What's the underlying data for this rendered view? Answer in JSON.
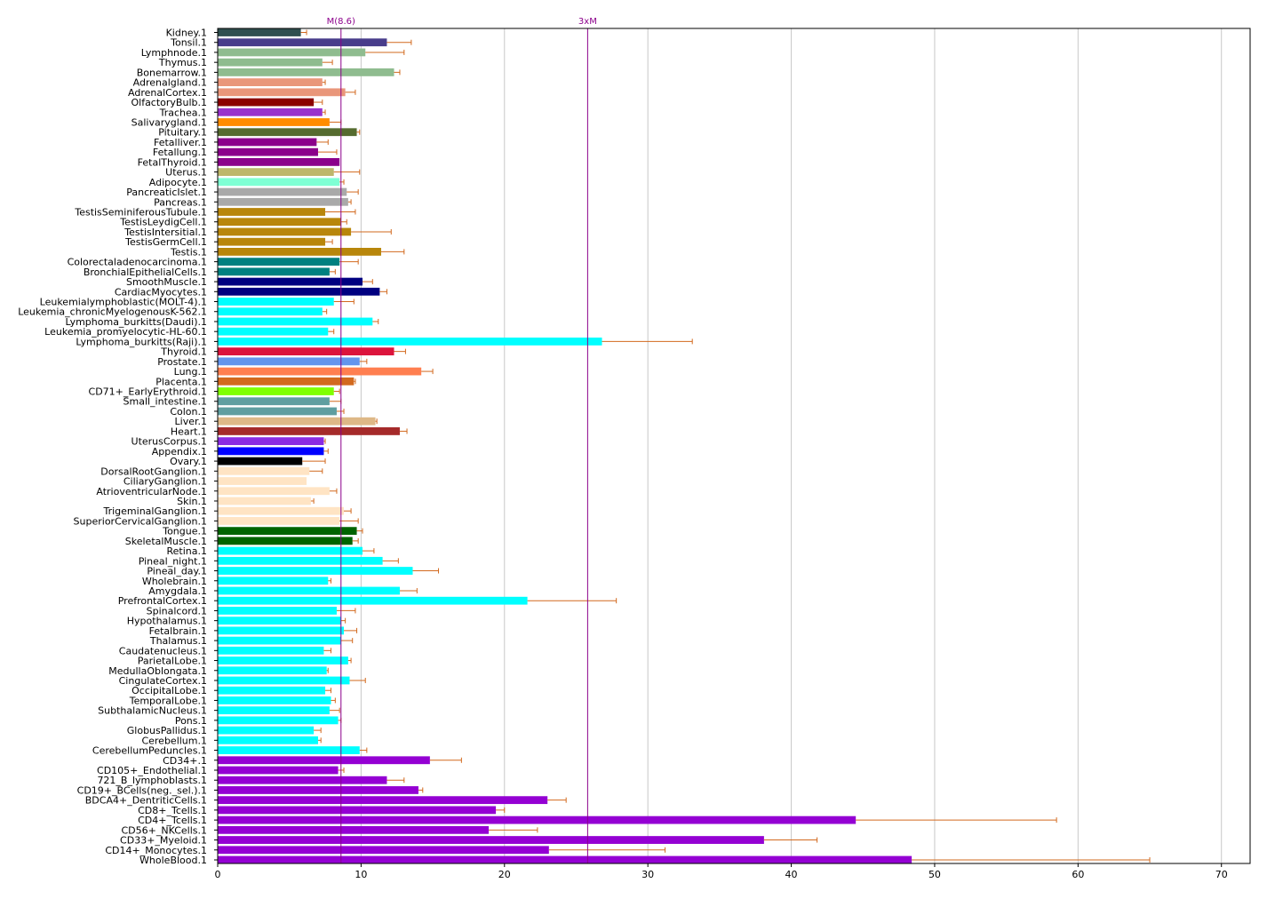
{
  "chart_data": {
    "type": "bar",
    "orientation": "horizontal",
    "title": "",
    "xlabel": "",
    "ylabel": "",
    "xlim": [
      0,
      72
    ],
    "xticks": [
      0,
      10,
      20,
      30,
      40,
      50,
      60,
      70
    ],
    "grid": "vertical",
    "error_bar_color": "#d2691e",
    "reference_lines": [
      {
        "label": "M(8.6)",
        "value": 8.6,
        "color": "#8b008b"
      },
      {
        "label": "3xM",
        "value": 25.8,
        "color": "#8b008b"
      }
    ],
    "bars": [
      {
        "label": "Kidney.1",
        "value": 5.8,
        "error": 0.4,
        "color": "#2f4f4f"
      },
      {
        "label": "Tonsil.1",
        "value": 11.8,
        "error": 1.7,
        "color": "#483d8b"
      },
      {
        "label": "Lymphnode.1",
        "value": 10.3,
        "error": 2.7,
        "color": "#8fbc8f"
      },
      {
        "label": "Thymus.1",
        "value": 7.3,
        "error": 0.7,
        "color": "#8fbc8f"
      },
      {
        "label": "Bonemarrow.1",
        "value": 12.3,
        "error": 0.4,
        "color": "#8fbc8f"
      },
      {
        "label": "Adrenalgland.1",
        "value": 7.3,
        "error": 0.2,
        "color": "#e9967a"
      },
      {
        "label": "AdrenalCortex.1",
        "value": 8.9,
        "error": 0.7,
        "color": "#e9967a"
      },
      {
        "label": "OlfactoryBulb.1",
        "value": 6.7,
        "error": 0.6,
        "color": "#8b0000"
      },
      {
        "label": "Trachea.1",
        "value": 7.3,
        "error": 0.2,
        "color": "#9932cc"
      },
      {
        "label": "Salivarygland.1",
        "value": 7.8,
        "error": 0.8,
        "color": "#ff8c00"
      },
      {
        "label": "Pituitary.1",
        "value": 9.7,
        "error": 0.2,
        "color": "#556b2f"
      },
      {
        "label": "Fetalliver.1",
        "value": 6.9,
        "error": 0.8,
        "color": "#8b008b"
      },
      {
        "label": "Fetallung.1",
        "value": 7.0,
        "error": 1.3,
        "color": "#8b008b"
      },
      {
        "label": "FetalThyroid.1",
        "value": 8.5,
        "error": 0.0,
        "color": "#8b008b"
      },
      {
        "label": "Uterus.1",
        "value": 8.1,
        "error": 1.8,
        "color": "#bdb76b"
      },
      {
        "label": "Adipocyte.1",
        "value": 8.5,
        "error": 0.3,
        "color": "#7fffd4"
      },
      {
        "label": "PancreaticIslet.1",
        "value": 9.0,
        "error": 0.8,
        "color": "#a9a9a9"
      },
      {
        "label": "Pancreas.1",
        "value": 9.1,
        "error": 0.2,
        "color": "#a9a9a9"
      },
      {
        "label": "TestisSeminiferousTubule.1",
        "value": 7.5,
        "error": 2.1,
        "color": "#b8860b"
      },
      {
        "label": "TestisLeydigCell.1",
        "value": 8.6,
        "error": 0.4,
        "color": "#b8860b"
      },
      {
        "label": "TestisIntersitial.1",
        "value": 9.3,
        "error": 2.8,
        "color": "#b8860b"
      },
      {
        "label": "TestisGermCell.1",
        "value": 7.5,
        "error": 0.5,
        "color": "#b8860b"
      },
      {
        "label": "Testis.1",
        "value": 11.4,
        "error": 1.6,
        "color": "#b8860b"
      },
      {
        "label": "Colorectaladenocarcinoma.1",
        "value": 8.5,
        "error": 1.3,
        "color": "#008080"
      },
      {
        "label": "BronchialEpithelialCells.1",
        "value": 7.8,
        "error": 0.4,
        "color": "#008080"
      },
      {
        "label": "SmoothMuscle.1",
        "value": 10.1,
        "error": 0.7,
        "color": "#000080"
      },
      {
        "label": "CardiacMyocytes.1",
        "value": 11.3,
        "error": 0.5,
        "color": "#000080"
      },
      {
        "label": "Leukemialymphoblastic(MOLT-4).1",
        "value": 8.1,
        "error": 1.4,
        "color": "#00ffff"
      },
      {
        "label": "Leukemia_chronicMyelogenousK-562.1",
        "value": 7.3,
        "error": 0.3,
        "color": "#00ffff"
      },
      {
        "label": "Lymphoma_burkitts(Daudi).1",
        "value": 10.8,
        "error": 0.4,
        "color": "#00ffff"
      },
      {
        "label": "Leukemia_promyelocytic-HL-60.1",
        "value": 7.7,
        "error": 0.4,
        "color": "#00ffff"
      },
      {
        "label": "Lymphoma_burkitts(Raji).1",
        "value": 26.8,
        "error": 6.3,
        "color": "#00ffff"
      },
      {
        "label": "Thyroid.1",
        "value": 12.3,
        "error": 0.8,
        "color": "#dc143c"
      },
      {
        "label": "Prostate.1",
        "value": 9.9,
        "error": 0.5,
        "color": "#6495ed"
      },
      {
        "label": "Lung.1",
        "value": 14.2,
        "error": 0.8,
        "color": "#ff7f50"
      },
      {
        "label": "Placenta.1",
        "value": 9.5,
        "error": 0.1,
        "color": "#d2691e"
      },
      {
        "label": "CD71+_EarlyErythroid.1",
        "value": 8.1,
        "error": 0.4,
        "color": "#7fff00"
      },
      {
        "label": "Small_intestine.1",
        "value": 7.8,
        "error": 0.8,
        "color": "#5f9ea0"
      },
      {
        "label": "Colon.1",
        "value": 8.3,
        "error": 0.5,
        "color": "#5f9ea0"
      },
      {
        "label": "Liver.1",
        "value": 11.0,
        "error": 0.1,
        "color": "#deb887"
      },
      {
        "label": "Heart.1",
        "value": 12.7,
        "error": 0.5,
        "color": "#a52a2a"
      },
      {
        "label": "UterusCorpus.1",
        "value": 7.4,
        "error": 0.1,
        "color": "#8a2be2"
      },
      {
        "label": "Appendix.1",
        "value": 7.4,
        "error": 0.3,
        "color": "#0000ff"
      },
      {
        "label": "Ovary.1",
        "value": 5.9,
        "error": 1.6,
        "color": "#000000"
      },
      {
        "label": "DorsalRootGanglion.1",
        "value": 6.4,
        "error": 0.9,
        "color": "#ffe4c4"
      },
      {
        "label": "CiliaryGanglion.1",
        "value": 6.2,
        "error": 0.0,
        "color": "#ffe4c4"
      },
      {
        "label": "AtrioventricularNode.1",
        "value": 7.8,
        "error": 0.5,
        "color": "#ffe4c4"
      },
      {
        "label": "Skin.1",
        "value": 6.5,
        "error": 0.2,
        "color": "#ffe4c4"
      },
      {
        "label": "TrigeminalGanglion.1",
        "value": 8.8,
        "error": 0.5,
        "color": "#ffe4c4"
      },
      {
        "label": "SuperiorCervicalGanglion.1",
        "value": 8.5,
        "error": 1.3,
        "color": "#ffe4c4"
      },
      {
        "label": "Tongue.1",
        "value": 9.7,
        "error": 0.4,
        "color": "#006400"
      },
      {
        "label": "SkeletalMuscle.1",
        "value": 9.4,
        "error": 0.4,
        "color": "#006400"
      },
      {
        "label": "Retina.1",
        "value": 10.1,
        "error": 0.8,
        "color": "#00ffff"
      },
      {
        "label": "Pineal_night.1",
        "value": 11.5,
        "error": 1.1,
        "color": "#00ffff"
      },
      {
        "label": "Pineal_day.1",
        "value": 13.6,
        "error": 1.8,
        "color": "#00ffff"
      },
      {
        "label": "Wholebrain.1",
        "value": 7.7,
        "error": 0.2,
        "color": "#00ffff"
      },
      {
        "label": "Amygdala.1",
        "value": 12.7,
        "error": 1.2,
        "color": "#00ffff"
      },
      {
        "label": "PrefrontalCortex.1",
        "value": 21.6,
        "error": 6.2,
        "color": "#00ffff"
      },
      {
        "label": "Spinalcord.1",
        "value": 8.3,
        "error": 1.3,
        "color": "#00ffff"
      },
      {
        "label": "Hypothalamus.1",
        "value": 8.6,
        "error": 0.3,
        "color": "#00ffff"
      },
      {
        "label": "Fetalbrain.1",
        "value": 8.8,
        "error": 0.9,
        "color": "#00ffff"
      },
      {
        "label": "Thalamus.1",
        "value": 8.6,
        "error": 0.8,
        "color": "#00ffff"
      },
      {
        "label": "Caudatenucleus.1",
        "value": 7.4,
        "error": 0.5,
        "color": "#00ffff"
      },
      {
        "label": "ParietalLobe.1",
        "value": 9.1,
        "error": 0.2,
        "color": "#00ffff"
      },
      {
        "label": "MedullaOblongata.1",
        "value": 7.6,
        "error": 0.1,
        "color": "#00ffff"
      },
      {
        "label": "CingulateCortex.1",
        "value": 9.2,
        "error": 1.1,
        "color": "#00ffff"
      },
      {
        "label": "OccipitalLobe.1",
        "value": 7.5,
        "error": 0.4,
        "color": "#00ffff"
      },
      {
        "label": "TemporalLobe.1",
        "value": 7.9,
        "error": 0.3,
        "color": "#00ffff"
      },
      {
        "label": "SubthalamicNucleus.1",
        "value": 7.8,
        "error": 0.7,
        "color": "#00ffff"
      },
      {
        "label": "Pons.1",
        "value": 8.4,
        "error": 0.2,
        "color": "#00ffff"
      },
      {
        "label": "GlobusPallidus.1",
        "value": 6.7,
        "error": 0.5,
        "color": "#00ffff"
      },
      {
        "label": "Cerebellum.1",
        "value": 7.0,
        "error": 0.2,
        "color": "#00ffff"
      },
      {
        "label": "CerebellumPeduncles.1",
        "value": 9.9,
        "error": 0.5,
        "color": "#00ffff"
      },
      {
        "label": "CD34+.1",
        "value": 14.8,
        "error": 2.2,
        "color": "#9400d3"
      },
      {
        "label": "CD105+_Endothelial.1",
        "value": 8.4,
        "error": 0.4,
        "color": "#9400d3"
      },
      {
        "label": "721_B_lymphoblasts.1",
        "value": 11.8,
        "error": 1.2,
        "color": "#9400d3"
      },
      {
        "label": "CD19+_BCells(neg._sel.).1",
        "value": 14.0,
        "error": 0.3,
        "color": "#9400d3"
      },
      {
        "label": "BDCA4+_DentriticCells.1",
        "value": 23.0,
        "error": 1.3,
        "color": "#9400d3"
      },
      {
        "label": "CD8+_Tcells.1",
        "value": 19.4,
        "error": 0.6,
        "color": "#9400d3"
      },
      {
        "label": "CD4+_Tcells.1",
        "value": 44.5,
        "error": 14.0,
        "color": "#9400d3"
      },
      {
        "label": "CD56+_NKCells.1",
        "value": 18.9,
        "error": 3.4,
        "color": "#9400d3"
      },
      {
        "label": "CD33+_Myeloid.1",
        "value": 38.1,
        "error": 3.7,
        "color": "#9400d3"
      },
      {
        "label": "CD14+_Monocytes.1",
        "value": 23.1,
        "error": 8.1,
        "color": "#9400d3"
      },
      {
        "label": "WholeBlood.1",
        "value": 48.4,
        "error": 16.6,
        "color": "#9400d3"
      }
    ]
  }
}
